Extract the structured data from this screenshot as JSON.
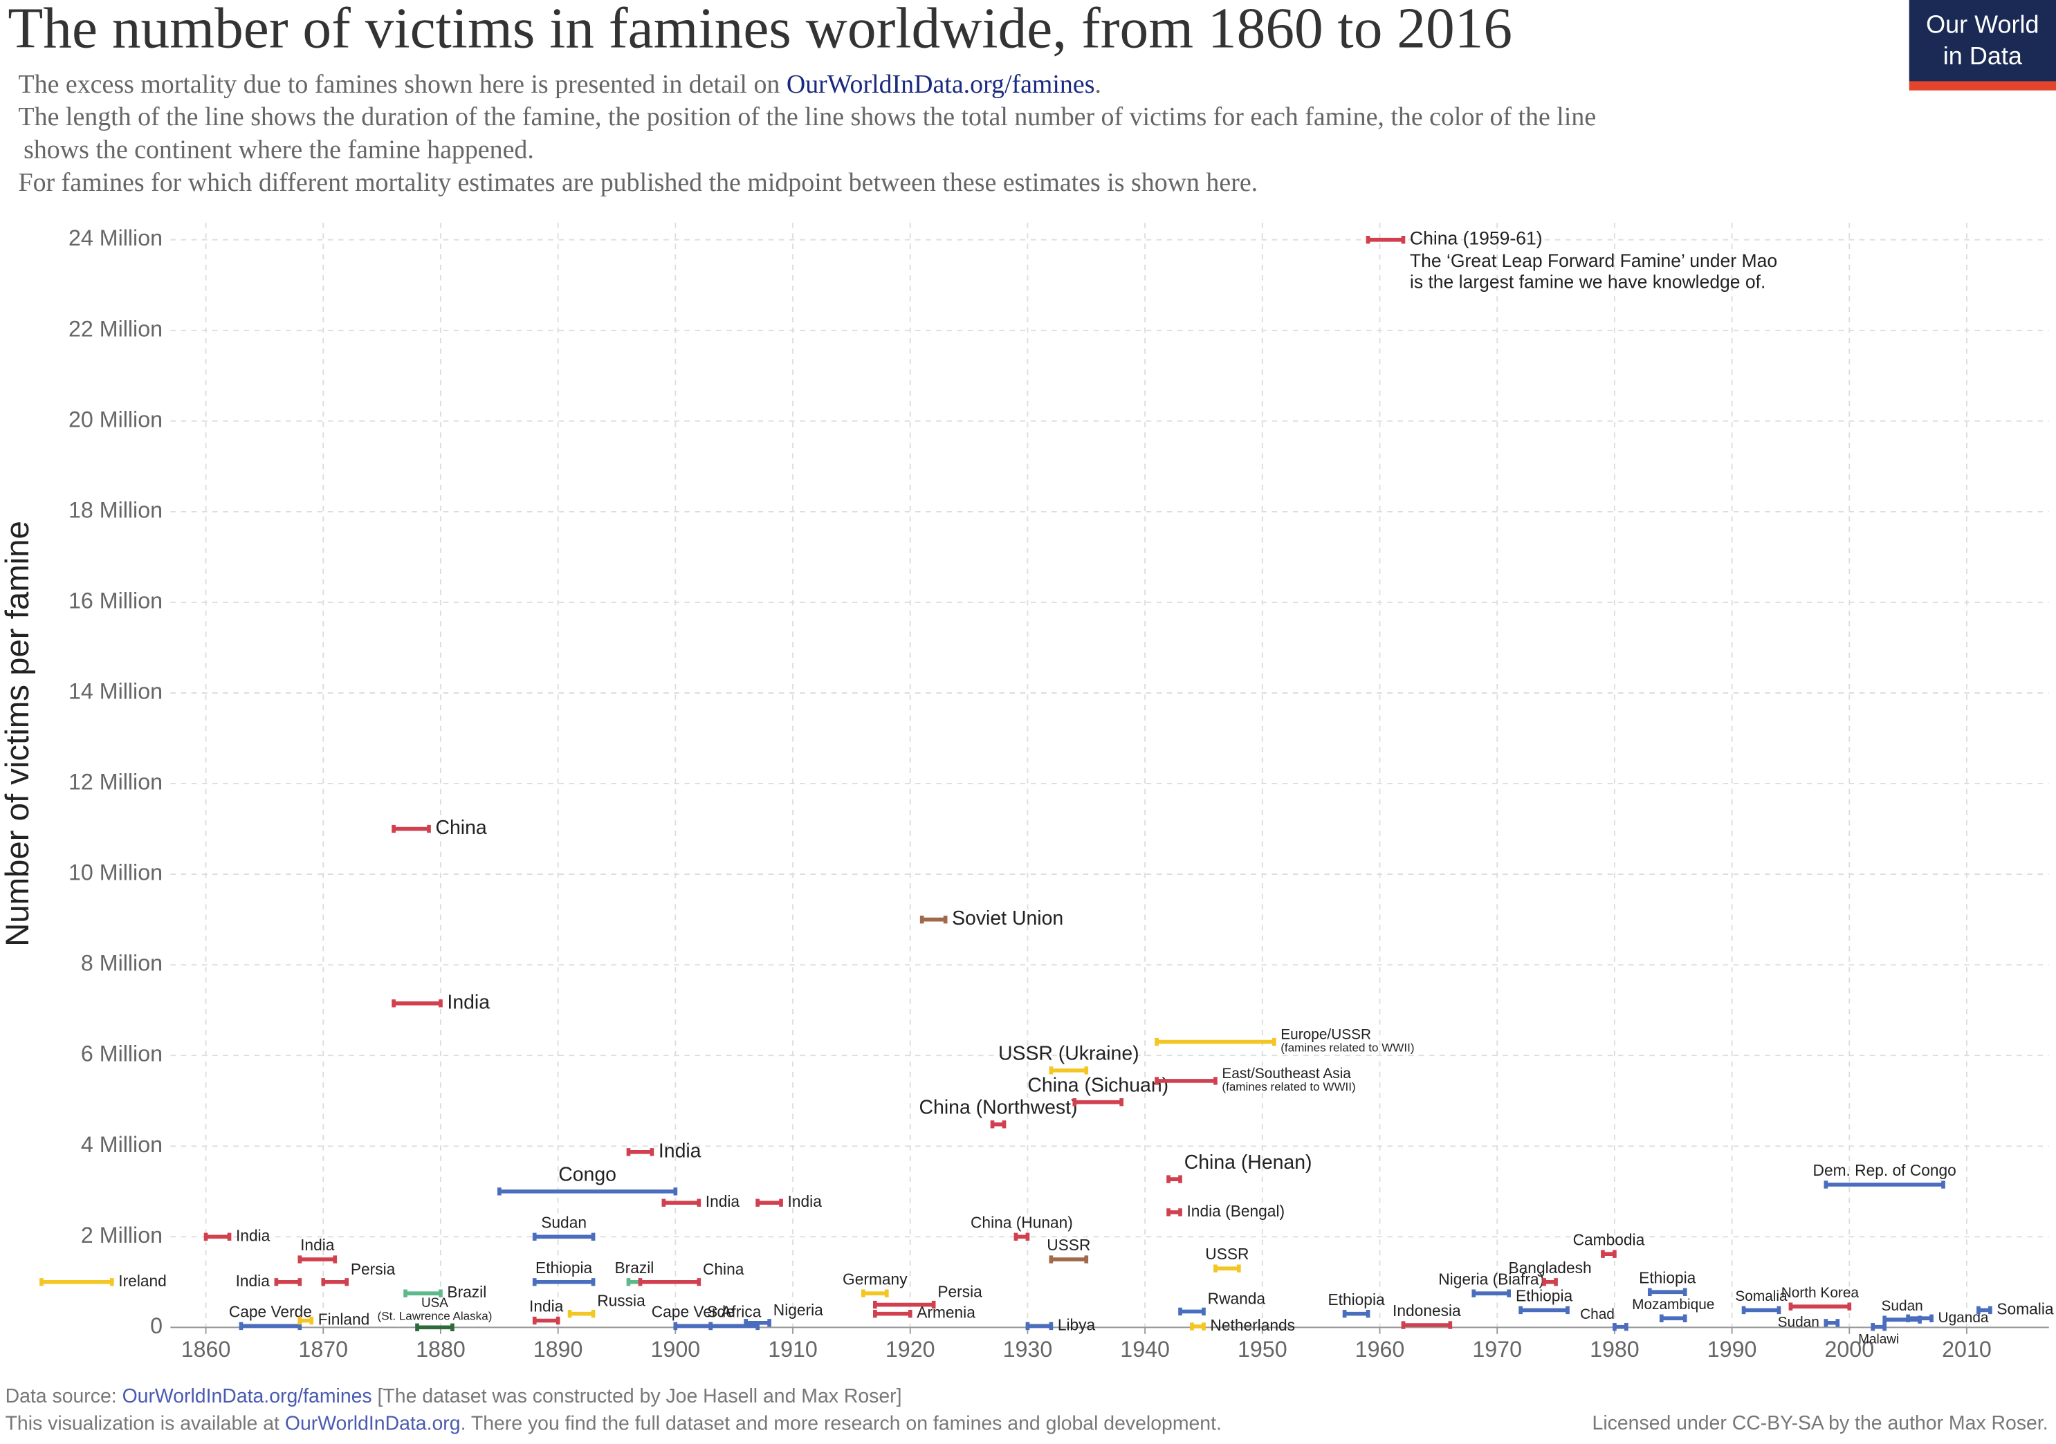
{
  "header": {
    "title": "The number of victims in famines worldwide, from 1860 to 2016",
    "subtitle": {
      "line1": "The excess mortality due to famines shown here is presented in detail on ",
      "link": "OurWorldInData.org/famines",
      "end": ".",
      "line2": "The length of the line shows the duration of the famine, the position of the line shows the total number of victims for each famine, the color of the line",
      "line3": "shows the continent where the famine happened.",
      "line4": "For famines for which different mortality estimates are published the midpoint between these estimates is shown here."
    }
  },
  "logo": [
    "Our World",
    "in Data"
  ],
  "chart_data": {
    "type": "range",
    "y_label": "Number of victims per famine",
    "xlim": [
      1845,
      2017
    ],
    "xticks": [
      1860,
      1870,
      1880,
      1890,
      1900,
      1910,
      1920,
      1930,
      1940,
      1950,
      1960,
      1970,
      1980,
      1990,
      2000,
      2010
    ],
    "ylim": [
      0,
      24
    ],
    "yticks": [
      0,
      {
        "value": 2,
        "label": "2 Million"
      },
      {
        "value": 4,
        "label": "4 Million"
      },
      {
        "value": 6,
        "label": "6 Million"
      },
      {
        "value": 8,
        "label": "8 Million"
      },
      {
        "value": 10,
        "label": "10 Million"
      },
      {
        "value": 12,
        "label": "12 Million"
      },
      {
        "value": 14,
        "label": "14 Million"
      },
      {
        "value": 16,
        "label": "16 Million"
      },
      {
        "value": 18,
        "label": "18 Million"
      },
      {
        "value": 20,
        "label": "20 Million"
      },
      {
        "value": 22,
        "label": "22 Million"
      },
      {
        "value": 24,
        "label": "24 Million"
      }
    ],
    "grid": true,
    "famines": [
      {
        "label": "Ireland",
        "x": [
          1846,
          1852
        ],
        "value": 1,
        "color": "#f3c623"
      },
      {
        "label": "India",
        "x": [
          1860,
          1862
        ],
        "value": 2,
        "color": "#d1404f"
      },
      {
        "label": "India",
        "x": [
          1868,
          1871
        ],
        "value": 1.5,
        "color": "#d1404f"
      },
      {
        "label": "India",
        "x": [
          1866,
          1868
        ],
        "value": 1,
        "color": "#d1404f"
      },
      {
        "label": "Persia",
        "x": [
          1870,
          1872
        ],
        "value": 1,
        "color": "#d1404f"
      },
      {
        "label": "Cape Verde",
        "x": [
          1863,
          1868
        ],
        "value": 0.03,
        "color": "#4a6dbd"
      },
      {
        "label": "Finland",
        "x": [
          1868,
          1869
        ],
        "value": 0.15,
        "color": "#f3c623"
      },
      {
        "label": "China",
        "x": [
          1876,
          1879
        ],
        "value": 11,
        "color": "#d1404f"
      },
      {
        "label": "India",
        "x": [
          1876,
          1880
        ],
        "value": 7.15,
        "color": "#d1404f"
      },
      {
        "label": "Brazil",
        "x": [
          1877,
          1880
        ],
        "value": 0.75,
        "color": "#5cb98a"
      },
      {
        "label": "USA",
        "note": [
          "(St. Lawrence Alaska)"
        ],
        "x": [
          1878,
          1881
        ],
        "value": 0.001,
        "color": "#2e6b3a"
      },
      {
        "label": "Congo",
        "x": [
          1885,
          1900
        ],
        "value": 3,
        "color": "#4a6dbd"
      },
      {
        "label": "Sudan",
        "x": [
          1888,
          1893
        ],
        "value": 2,
        "color": "#4a6dbd"
      },
      {
        "label": "Ethiopia",
        "x": [
          1888,
          1893
        ],
        "value": 1,
        "color": "#4a6dbd"
      },
      {
        "label": "India",
        "x": [
          1888,
          1890
        ],
        "value": 0.15,
        "color": "#d1404f"
      },
      {
        "label": "Russia",
        "x": [
          1891,
          1893
        ],
        "value": 0.3,
        "color": "#f3c623"
      },
      {
        "label": "India",
        "x": [
          1896,
          1898
        ],
        "value": 3.87,
        "color": "#d1404f"
      },
      {
        "label": "Brazil",
        "x": [
          1896,
          1897
        ],
        "value": 1,
        "color": "#5cb98a"
      },
      {
        "label": "China",
        "x": [
          1897,
          1902
        ],
        "value": 1,
        "color": "#d1404f"
      },
      {
        "label": "India",
        "x": [
          1899,
          1902
        ],
        "value": 2.75,
        "color": "#d1404f"
      },
      {
        "label": "India",
        "x": [
          1907,
          1909
        ],
        "value": 2.75,
        "color": "#d1404f"
      },
      {
        "label": "Cape Verde",
        "x": [
          1900,
          1903
        ],
        "value": 0.03,
        "color": "#4a6dbd"
      },
      {
        "label": "S Africa",
        "x": [
          1903,
          1907
        ],
        "value": 0.03,
        "color": "#4a6dbd"
      },
      {
        "label": "Nigeria",
        "x": [
          1906,
          1908
        ],
        "value": 0.1,
        "color": "#4a6dbd"
      },
      {
        "label": "Germany",
        "x": [
          1916,
          1918
        ],
        "value": 0.75,
        "color": "#f3c623"
      },
      {
        "label": "Persia",
        "x": [
          1917,
          1922
        ],
        "value": 0.5,
        "color": "#d1404f"
      },
      {
        "label": "Armenia",
        "x": [
          1917,
          1920
        ],
        "value": 0.3,
        "color": "#d1404f"
      },
      {
        "label": "Soviet Union",
        "x": [
          1921,
          1923
        ],
        "value": 9,
        "color": "#a06a4a"
      },
      {
        "label": "China (Northwest)",
        "x": [
          1927,
          1928
        ],
        "value": 4.48,
        "color": "#d1404f"
      },
      {
        "label": "China (Hunan)",
        "x": [
          1929,
          1930
        ],
        "value": 2,
        "color": "#d1404f"
      },
      {
        "label": "Libya",
        "x": [
          1930,
          1932
        ],
        "value": 0.03,
        "color": "#4a6dbd"
      },
      {
        "label": "USSR",
        "x": [
          1932,
          1935
        ],
        "value": 1.5,
        "color": "#a06a4a"
      },
      {
        "label": "USSR (Ukraine)",
        "x": [
          1932,
          1935
        ],
        "value": 5.67,
        "color": "#f3c623"
      },
      {
        "label": "China (Sichuan)",
        "x": [
          1934,
          1938
        ],
        "value": 4.97,
        "color": "#d1404f"
      },
      {
        "label": "Europe/USSR",
        "note": [
          "(famines related to WWII)"
        ],
        "x": [
          1941,
          1951
        ],
        "value": 6.3,
        "color": "#f3c623"
      },
      {
        "label": "East/Southeast Asia",
        "note": [
          "(famines related to WWII)"
        ],
        "x": [
          1941,
          1946
        ],
        "value": 5.44,
        "color": "#d1404f"
      },
      {
        "label": "China (Henan)",
        "x": [
          1942,
          1943
        ],
        "value": 3.27,
        "color": "#d1404f"
      },
      {
        "label": "India (Bengal)",
        "x": [
          1942,
          1943
        ],
        "value": 2.54,
        "color": "#d1404f"
      },
      {
        "label": "USSR",
        "x": [
          1946,
          1948
        ],
        "value": 1.3,
        "color": "#f3c623"
      },
      {
        "label": "Rwanda",
        "x": [
          1943,
          1945
        ],
        "value": 0.35,
        "color": "#4a6dbd"
      },
      {
        "label": "Netherlands",
        "x": [
          1944,
          1945
        ],
        "value": 0.02,
        "color": "#f3c623"
      },
      {
        "label": "Ethiopia",
        "x": [
          1957,
          1959
        ],
        "value": 0.3,
        "color": "#4a6dbd"
      },
      {
        "label": "China (1959-61)",
        "note": [
          "The ‘Great Leap Forward Famine’ under Mao",
          "is the largest famine we have knowledge of."
        ],
        "x": [
          1959,
          1962
        ],
        "value": 24,
        "color": "#d1404f"
      },
      {
        "label": "Indonesia",
        "x": [
          1962,
          1966
        ],
        "value": 0.05,
        "color": "#d1404f"
      },
      {
        "label": "Nigeria (Biafra)",
        "x": [
          1968,
          1971
        ],
        "value": 0.75,
        "color": "#4a6dbd"
      },
      {
        "label": "Ethiopia",
        "x": [
          1972,
          1976
        ],
        "value": 0.38,
        "color": "#4a6dbd"
      },
      {
        "label": "Bangladesh",
        "x": [
          1974,
          1975
        ],
        "value": 1,
        "color": "#d1404f"
      },
      {
        "label": "Cambodia",
        "x": [
          1979,
          1980
        ],
        "value": 1.62,
        "color": "#d1404f"
      },
      {
        "label": "Chad",
        "x": [
          1980,
          1981
        ],
        "value": 0.01,
        "color": "#4a6dbd"
      },
      {
        "label": "Ethiopia",
        "x": [
          1983,
          1986
        ],
        "value": 0.78,
        "color": "#4a6dbd"
      },
      {
        "label": "Mozambique",
        "x": [
          1984,
          1986
        ],
        "value": 0.2,
        "color": "#4a6dbd"
      },
      {
        "label": "Somalia",
        "x": [
          1991,
          1994
        ],
        "value": 0.38,
        "color": "#4a6dbd"
      },
      {
        "label": "North Korea",
        "x": [
          1995,
          2000
        ],
        "value": 0.46,
        "color": "#d1404f"
      },
      {
        "label": "Sudan",
        "x": [
          1998,
          1999
        ],
        "value": 0.1,
        "color": "#4a6dbd"
      },
      {
        "label": "Dem. Rep. of Congo",
        "x": [
          1998,
          2008
        ],
        "value": 3.15,
        "color": "#4a6dbd"
      },
      {
        "label": "Malawi",
        "x": [
          2002,
          2003
        ],
        "value": 0.01,
        "color": "#4a6dbd"
      },
      {
        "label": "Sudan",
        "x": [
          2003,
          2006
        ],
        "value": 0.17,
        "color": "#4a6dbd"
      },
      {
        "label": "Uganda",
        "x": [
          2005,
          2007
        ],
        "value": 0.2,
        "color": "#4a6dbd"
      },
      {
        "label": "Somalia",
        "x": [
          2011,
          2012
        ],
        "value": 0.38,
        "color": "#4a6dbd"
      }
    ]
  },
  "footer": {
    "source_prefix": "Data source: ",
    "source_link": "OurWorldInData.org/famines",
    "source_suffix": " [The dataset was constructed by Joe Hasell and Max Roser]",
    "avail_prefix": "This visualization is available at ",
    "avail_link": "OurWorldInData.org",
    "avail_suffix": ". There you find the full dataset and more research on famines and global development.",
    "license": "Licensed under CC-BY-SA by the author Max Roser."
  }
}
